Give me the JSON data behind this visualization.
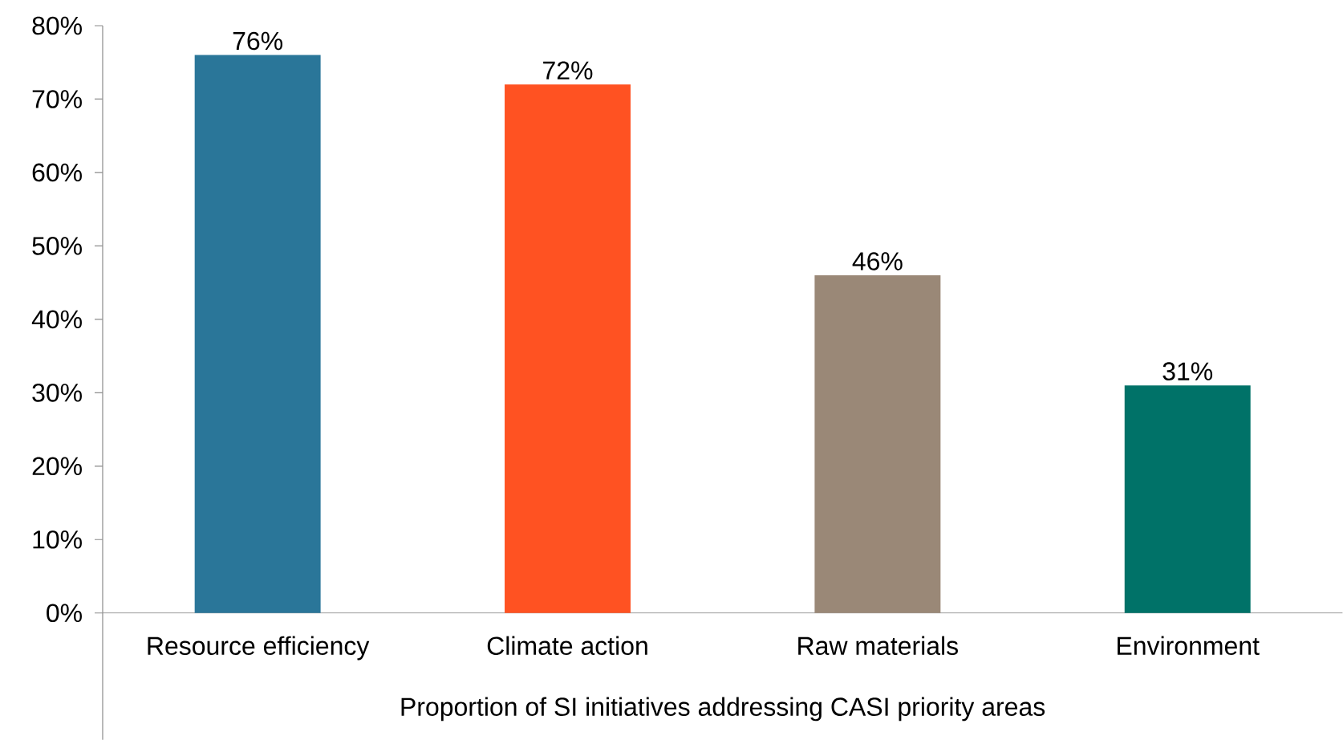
{
  "chart_data": {
    "type": "bar",
    "xlabel": "Proportion of SI initiatives addressing CASI priority areas",
    "categories": [
      "Resource efficiency",
      "Climate action",
      "Raw materials",
      "Environment"
    ],
    "values": [
      76,
      72,
      46,
      31
    ],
    "value_labels": [
      "76%",
      "72%",
      "46%",
      "31%"
    ],
    "colors": [
      "#2a7699",
      "#ff5222",
      "#9a8877",
      "#007268"
    ],
    "ylim": [
      0,
      80
    ],
    "yticks": [
      {
        "value": 0,
        "label": "0%"
      },
      {
        "value": 10,
        "label": "10%"
      },
      {
        "value": 20,
        "label": "20%"
      },
      {
        "value": 30,
        "label": "30%"
      },
      {
        "value": 40,
        "label": "40%"
      },
      {
        "value": 50,
        "label": "50%"
      },
      {
        "value": 60,
        "label": "60%"
      },
      {
        "value": 70,
        "label": "70%"
      },
      {
        "value": 80,
        "label": "80%"
      }
    ],
    "grid": false,
    "legend": false
  }
}
